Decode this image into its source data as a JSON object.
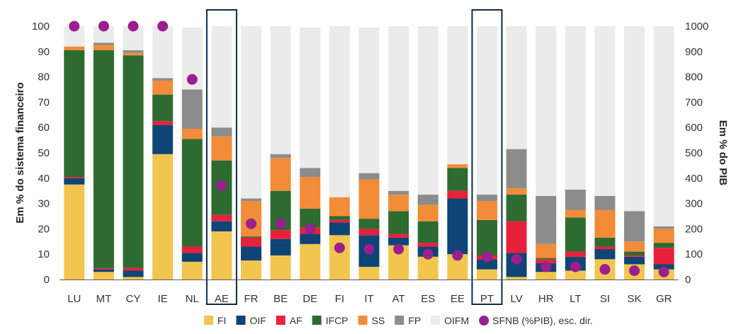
{
  "chart_data": {
    "type": "bar",
    "stacked": true,
    "categories": [
      "LU",
      "MT",
      "CY",
      "IE",
      "NL",
      "AE",
      "FR",
      "BE",
      "DE",
      "FI",
      "IT",
      "AT",
      "ES",
      "EE",
      "PT",
      "LV",
      "HR",
      "LT",
      "SI",
      "SK",
      "GR"
    ],
    "highlighted_categories": [
      "AE",
      "PT"
    ],
    "ylabel": "Em % do sistema financeiro",
    "y2label": "Em % do PIB",
    "ylim": [
      0,
      100
    ],
    "y2lim": [
      0,
      1000
    ],
    "yticks": [
      "0",
      "10",
      "20",
      "30",
      "40",
      "50",
      "60",
      "70",
      "80",
      "90",
      "100"
    ],
    "y2ticks": [
      "0",
      "100",
      "200",
      "300",
      "400",
      "500",
      "600",
      "700",
      "800",
      "900",
      "1000"
    ],
    "series": [
      {
        "name": "FI",
        "color": "#F2C54E",
        "values": [
          37.5,
          3,
          1,
          49.5,
          7,
          19,
          7.5,
          9.5,
          14,
          17.5,
          5,
          13.5,
          9,
          10,
          4,
          1,
          3,
          3.5,
          8,
          6,
          4
        ]
      },
      {
        "name": "OIF",
        "color": "#0E4476",
        "values": [
          2.5,
          1,
          2.5,
          11.5,
          3.5,
          4,
          5.5,
          6.5,
          4,
          5,
          12.5,
          3,
          4,
          22,
          4,
          9.5,
          3.5,
          5.5,
          4,
          3,
          2
        ]
      },
      {
        "name": "AF",
        "color": "#E8213B",
        "values": [
          0.5,
          0.5,
          1,
          1.5,
          2.5,
          2.5,
          3.5,
          3.5,
          2.5,
          1,
          2.5,
          1.5,
          1.5,
          3,
          1.5,
          12.5,
          1.5,
          2,
          1,
          0.5,
          6.5
        ]
      },
      {
        "name": "IFCP",
        "color": "#2E6B30",
        "values": [
          50,
          86,
          84,
          10.5,
          42.5,
          21.5,
          0.5,
          15.5,
          7.5,
          1.5,
          4,
          9,
          8.5,
          9,
          14,
          10.5,
          0.5,
          13.5,
          3.5,
          1.5,
          2
        ]
      },
      {
        "name": "SS",
        "color": "#F28C38",
        "values": [
          1.5,
          2,
          1,
          5.5,
          4,
          9.5,
          14,
          13,
          12.5,
          7.5,
          15.5,
          6.5,
          6.5,
          1.5,
          7.5,
          2.5,
          5.5,
          3,
          11,
          4,
          5.5
        ]
      },
      {
        "name": "FP",
        "color": "#8C8C8C",
        "values": [
          0,
          1,
          1,
          1,
          15.5,
          3.5,
          1,
          1.5,
          3.5,
          0,
          2.5,
          1.5,
          4,
          0,
          2.5,
          15.5,
          19,
          8,
          5.5,
          12,
          1
        ]
      },
      {
        "name": "OIFM",
        "color": "#EBEBEB",
        "values": [
          8,
          6.5,
          9.5,
          20.5,
          24.5,
          40,
          68,
          50.5,
          55.5,
          67.5,
          57.5,
          65,
          66.5,
          54.5,
          66.5,
          48.5,
          67,
          64.5,
          67,
          73,
          79
        ]
      }
    ],
    "scatter_series": {
      "name": "SFNB (%PIB), esc. dir.",
      "color": "#99208E",
      "axis": "right",
      "values": [
        1000,
        1000,
        1000,
        1000,
        790,
        370,
        220,
        220,
        200,
        125,
        120,
        120,
        100,
        95,
        90,
        80,
        50,
        50,
        40,
        35,
        30
      ]
    },
    "legend_position": "bottom",
    "grid": false
  }
}
